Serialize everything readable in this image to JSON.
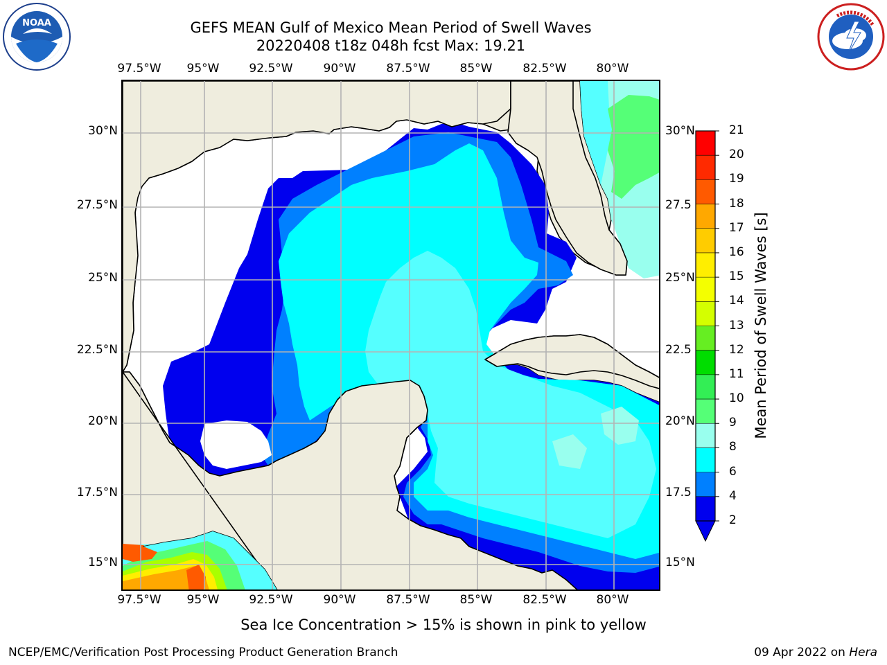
{
  "title": {
    "line1": "GEFS MEAN Gulf of Mexico Mean Period of Swell Waves",
    "line2": "20220408 t18z 048h fcst   Max: 19.21"
  },
  "subtitle": "Sea Ice Concentration > 15% is shown in pink to yellow",
  "footer": {
    "left": "NCEP/EMC/Verification Post Processing Product Generation Branch",
    "right_date": "09 Apr 2022 on ",
    "right_host": "Hera"
  },
  "logos": {
    "noaa_text": "NOAA",
    "noaa_ring": "NATIONAL OCEANIC AND ATMOSPHERIC ADMINISTRATION · U.S. DEPARTMENT OF COMMERCE",
    "nws_ring": "NATIONAL WEATHER SERVICE"
  },
  "map": {
    "lon_labels": [
      "97.5°W",
      "95°W",
      "92.5°W",
      "90°W",
      "87.5°W",
      "85°W",
      "82.5°W",
      "80°W"
    ],
    "lat_labels_left": [
      "30°N",
      "27.5°N",
      "25°N",
      "22.5°N",
      "20°N",
      "17.5°N",
      "15°N"
    ],
    "lat_labels_right": [
      "30°N",
      "27.5",
      "25°N",
      "22.5",
      "20°N",
      "17.5",
      "15°N"
    ],
    "land_color": "#efedde",
    "grid_color": "#b3b3b3"
  },
  "colorbar": {
    "title": "Mean Period of Swell Waves [s]",
    "ticks": [
      "21",
      "20",
      "19",
      "18",
      "17",
      "16",
      "15",
      "14",
      "13",
      "12",
      "11",
      "10",
      "9",
      "8",
      "6",
      "4",
      "2"
    ],
    "colors": [
      "#ff0000",
      "#ff2a00",
      "#ff5a00",
      "#ff8800",
      "#ffa800",
      "#ffcc00",
      "#ffee00",
      "#f4ff00",
      "#d4ff00",
      "#aaff00",
      "#66ee22",
      "#00dd00",
      "#33ee55",
      "#55ff77",
      "#99ffee",
      "#55ffff",
      "#00ffff",
      "#0080ff",
      "#0000ee"
    ]
  }
}
